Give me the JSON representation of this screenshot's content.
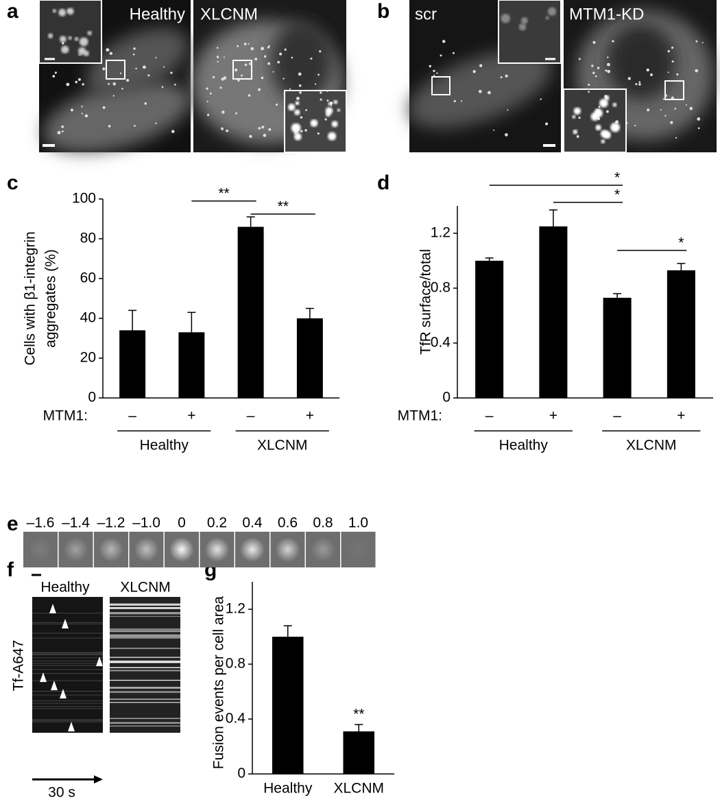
{
  "panel_labels": [
    "a",
    "b",
    "c",
    "d",
    "e",
    "f",
    "g"
  ],
  "panel_a": {
    "images": [
      "Healthy",
      "XLCNM"
    ]
  },
  "panel_b": {
    "images": [
      "scr",
      "MTM1-KD"
    ]
  },
  "panel_e": {
    "times": [
      "–1.6",
      "–1.4",
      "–1.2",
      "–1.0",
      "0",
      "0.2",
      "0.4",
      "0.6",
      "0.8",
      "1.0"
    ]
  },
  "panel_f": {
    "images": [
      "Healthy",
      "XLCNM"
    ],
    "ylabel": "Tf-A647",
    "time_arrow": "30 s"
  },
  "chart_data": [
    {
      "type": "bar",
      "ylabel": [
        "Cells with β1-integrin",
        "aggregates (%)"
      ],
      "row_label": "MTM1:",
      "categories": [
        "–",
        "+",
        "–",
        "+"
      ],
      "groups": [
        {
          "name": "Healthy",
          "span": [
            0,
            1
          ]
        },
        {
          "name": "XLCNM",
          "span": [
            2,
            3
          ]
        }
      ],
      "values": [
        34,
        33,
        86,
        40
      ],
      "errors": [
        10,
        10,
        5,
        5
      ],
      "color": "#000000",
      "ylim": [
        0,
        100
      ],
      "yticks": [
        0,
        20,
        40,
        60,
        80,
        100
      ],
      "significance": [
        {
          "label": "**",
          "between": [
            1,
            2
          ]
        },
        {
          "label": "**",
          "between": [
            2,
            3
          ]
        }
      ]
    },
    {
      "type": "bar",
      "ylabel": [
        "TfR surface/total"
      ],
      "row_label": "MTM1:",
      "categories": [
        "–",
        "+",
        "–",
        "+"
      ],
      "groups": [
        {
          "name": "Healthy",
          "span": [
            0,
            1
          ]
        },
        {
          "name": "XLCNM",
          "span": [
            2,
            3
          ]
        }
      ],
      "values": [
        1.0,
        1.25,
        0.73,
        0.93
      ],
      "errors": [
        0.02,
        0.12,
        0.03,
        0.05
      ],
      "color": "#000000",
      "ylim": [
        0,
        1.4
      ],
      "yticks": [
        0,
        0.4,
        0.8,
        1.2
      ],
      "significance": [
        {
          "label": "*",
          "between": [
            0,
            2
          ]
        },
        {
          "label": "*",
          "between": [
            1,
            2
          ]
        },
        {
          "label": "*",
          "between": [
            2,
            3
          ]
        }
      ]
    },
    {
      "type": "bar",
      "ylabel": [
        "Fusion events per cell area"
      ],
      "categories": [
        "Healthy",
        "XLCNM"
      ],
      "values": [
        1.0,
        0.31
      ],
      "errors": [
        0.08,
        0.05
      ],
      "color": "#000000",
      "ylim": [
        0,
        1.4
      ],
      "yticks": [
        0,
        0.4,
        0.8,
        1.2
      ],
      "annotations": [
        {
          "text": "**",
          "category": 1
        }
      ]
    }
  ]
}
